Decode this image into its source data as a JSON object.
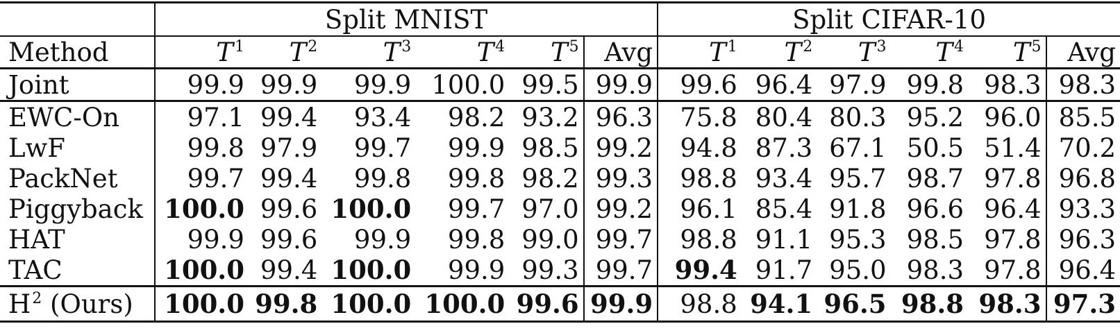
{
  "groups": {
    "mnist": "Split MNIST",
    "cifar": "Split CIFAR-10"
  },
  "header": {
    "method": "Method",
    "task_letter": "T",
    "tasks": [
      "1",
      "2",
      "3",
      "4",
      "5"
    ],
    "avg": "Avg"
  },
  "rows": [
    {
      "method": "Joint",
      "method_sup": "",
      "method_suffix": "",
      "mnist": [
        "99.9",
        "99.9",
        "99.9",
        "100.0",
        "99.5",
        "99.9"
      ],
      "cifar": [
        "99.6",
        "96.4",
        "97.9",
        "99.8",
        "98.3",
        "98.3"
      ],
      "mnist_bold": [
        false,
        false,
        false,
        false,
        false,
        false
      ],
      "cifar_bold": [
        false,
        false,
        false,
        false,
        false,
        false
      ]
    },
    {
      "method": "EWC-On",
      "method_sup": "",
      "method_suffix": "",
      "mnist": [
        "97.1",
        "99.4",
        "93.4",
        "98.2",
        "93.2",
        "96.3"
      ],
      "cifar": [
        "75.8",
        "80.4",
        "80.3",
        "95.2",
        "96.0",
        "85.5"
      ],
      "mnist_bold": [
        false,
        false,
        false,
        false,
        false,
        false
      ],
      "cifar_bold": [
        false,
        false,
        false,
        false,
        false,
        false
      ]
    },
    {
      "method": "LwF",
      "method_sup": "",
      "method_suffix": "",
      "mnist": [
        "99.8",
        "97.9",
        "99.7",
        "99.9",
        "98.5",
        "99.2"
      ],
      "cifar": [
        "94.8",
        "87.3",
        "67.1",
        "50.5",
        "51.4",
        "70.2"
      ],
      "mnist_bold": [
        false,
        false,
        false,
        false,
        false,
        false
      ],
      "cifar_bold": [
        false,
        false,
        false,
        false,
        false,
        false
      ]
    },
    {
      "method": "PackNet",
      "method_sup": "",
      "method_suffix": "",
      "mnist": [
        "99.7",
        "99.4",
        "99.8",
        "99.8",
        "98.2",
        "99.3"
      ],
      "cifar": [
        "98.8",
        "93.4",
        "95.7",
        "98.7",
        "97.8",
        "96.8"
      ],
      "mnist_bold": [
        false,
        false,
        false,
        false,
        false,
        false
      ],
      "cifar_bold": [
        false,
        false,
        false,
        false,
        false,
        false
      ]
    },
    {
      "method": "Piggyback",
      "method_sup": "",
      "method_suffix": "",
      "mnist": [
        "100.0",
        "99.6",
        "100.0",
        "99.7",
        "97.0",
        "99.2"
      ],
      "cifar": [
        "96.1",
        "85.4",
        "91.8",
        "96.6",
        "96.4",
        "93.3"
      ],
      "mnist_bold": [
        true,
        false,
        true,
        false,
        false,
        false
      ],
      "cifar_bold": [
        false,
        false,
        false,
        false,
        false,
        false
      ]
    },
    {
      "method": "HAT",
      "method_sup": "",
      "method_suffix": "",
      "mnist": [
        "99.9",
        "99.6",
        "99.9",
        "99.8",
        "99.0",
        "99.7"
      ],
      "cifar": [
        "98.8",
        "91.1",
        "95.3",
        "98.5",
        "97.8",
        "96.3"
      ],
      "mnist_bold": [
        false,
        false,
        false,
        false,
        false,
        false
      ],
      "cifar_bold": [
        false,
        false,
        false,
        false,
        false,
        false
      ]
    },
    {
      "method": "TAC",
      "method_sup": "",
      "method_suffix": "",
      "mnist": [
        "100.0",
        "99.4",
        "100.0",
        "99.9",
        "99.3",
        "99.7"
      ],
      "cifar": [
        "99.4",
        "91.7",
        "95.0",
        "98.3",
        "97.8",
        "96.4"
      ],
      "mnist_bold": [
        true,
        false,
        true,
        false,
        false,
        false
      ],
      "cifar_bold": [
        true,
        false,
        false,
        false,
        false,
        false
      ]
    },
    {
      "method": "H",
      "method_sup": "2",
      "method_suffix": "(Ours)",
      "mnist": [
        "100.0",
        "99.8",
        "100.0",
        "100.0",
        "99.6",
        "99.9"
      ],
      "cifar": [
        "98.8",
        "94.1",
        "96.5",
        "98.8",
        "98.3",
        "97.3"
      ],
      "mnist_bold": [
        true,
        true,
        true,
        true,
        true,
        true
      ],
      "cifar_bold": [
        false,
        true,
        true,
        true,
        true,
        true
      ]
    }
  ]
}
